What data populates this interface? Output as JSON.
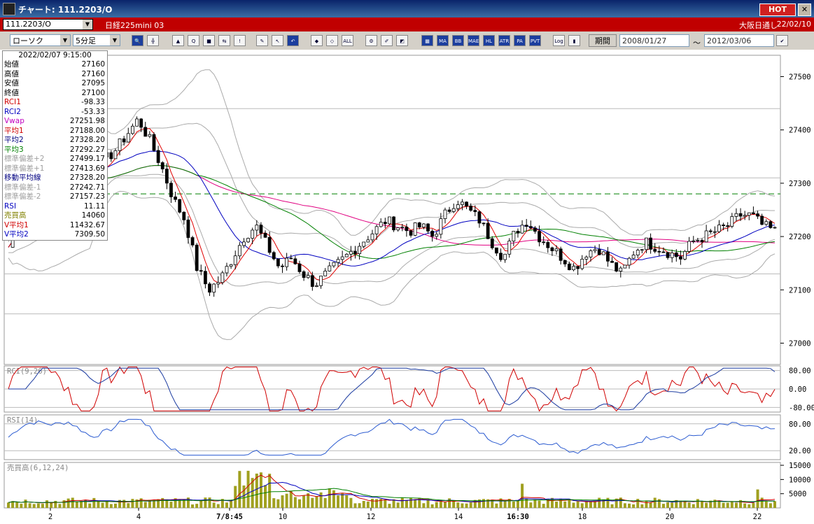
{
  "window": {
    "title": "チャート: 111.2203/O",
    "hot_label": "HOT",
    "close_glyph": "✕"
  },
  "symbol_bar": {
    "symbol": "111.2203/O",
    "name": "日経225mini 03",
    "session": "大阪日通し",
    "date": "22/02/10"
  },
  "toolbar": {
    "chart_type": "ローソク",
    "interval": "5分足",
    "period_label": "期間",
    "date_from": "2008/01/27",
    "tilde": "〜",
    "date_to": "2012/03/06",
    "buttons": [
      {
        "name": "zoom-icon",
        "label": "🔍",
        "style": "blue"
      },
      {
        "name": "crosshair-icon",
        "label": "╬",
        "style": ""
      },
      {
        "name": "tool-icon-a",
        "label": "▲",
        "style": ""
      },
      {
        "name": "tool-icon-b",
        "label": "Q",
        "style": ""
      },
      {
        "name": "tool-icon-c",
        "label": "■",
        "style": ""
      },
      {
        "name": "tool-icon-d",
        "label": "⇆",
        "style": ""
      },
      {
        "name": "tool-icon-e",
        "label": "!",
        "style": ""
      },
      {
        "name": "pen-icon",
        "label": "✎",
        "style": ""
      },
      {
        "name": "cursor-icon",
        "label": "↖",
        "style": ""
      },
      {
        "name": "undo-icon",
        "label": "↶",
        "style": "blue"
      },
      {
        "name": "candle-icon-a",
        "label": "◆",
        "style": ""
      },
      {
        "name": "candle-icon-b",
        "label": "◇",
        "style": ""
      },
      {
        "name": "all-icon",
        "label": "ALL",
        "style": ""
      },
      {
        "name": "settings-icon",
        "label": "⚙",
        "style": ""
      },
      {
        "name": "brush-icon",
        "label": "✐",
        "style": ""
      },
      {
        "name": "color-icon",
        "label": "◩",
        "style": ""
      },
      {
        "name": "grid-icon",
        "label": "▦",
        "style": "blue"
      },
      {
        "name": "ma-icon",
        "label": "MA",
        "style": "blue"
      },
      {
        "name": "bb-icon",
        "label": "BB",
        "style": "blue"
      },
      {
        "name": "mae-icon",
        "label": "MAE",
        "style": "blue"
      },
      {
        "name": "hl-icon",
        "label": "HL",
        "style": "blue"
      },
      {
        "name": "atr-icon",
        "label": "ATR",
        "style": "blue"
      },
      {
        "name": "para-icon",
        "label": "PA",
        "style": "blue"
      },
      {
        "name": "pvt-icon",
        "label": "PVT",
        "style": "blue"
      },
      {
        "name": "log-icon",
        "label": "Log",
        "style": ""
      },
      {
        "name": "split-icon",
        "label": "▮",
        "style": ""
      }
    ]
  },
  "info_panel": {
    "timestamp": "2022/02/07 9:15:00",
    "rows": [
      {
        "label": "始値",
        "value": "27160",
        "color": "#000000"
      },
      {
        "label": "高値",
        "value": "27160",
        "color": "#000000"
      },
      {
        "label": "安値",
        "value": "27095",
        "color": "#000000"
      },
      {
        "label": "終値",
        "value": "27100",
        "color": "#000000"
      },
      {
        "label": "RCI1",
        "value": "-98.33",
        "color": "#d00000"
      },
      {
        "label": "RCI2",
        "value": "-53.33",
        "color": "#0000c0"
      },
      {
        "label": "Vwap",
        "value": "27251.98",
        "color": "#c000c0"
      },
      {
        "label": "平均1",
        "value": "27188.00",
        "color": "#d00000"
      },
      {
        "label": "平均2",
        "value": "27328.20",
        "color": "#000080"
      },
      {
        "label": "平均3",
        "value": "27292.27",
        "color": "#008000"
      },
      {
        "label": "標準偏差+2",
        "value": "27499.17",
        "color": "#a0a0a0"
      },
      {
        "label": "標準偏差+1",
        "value": "27413.69",
        "color": "#a0a0a0"
      },
      {
        "label": "移動平均線",
        "value": "27328.20",
        "color": "#000080"
      },
      {
        "label": "標準偏差-1",
        "value": "27242.71",
        "color": "#a0a0a0"
      },
      {
        "label": "標準偏差-2",
        "value": "27157.23",
        "color": "#a0a0a0"
      },
      {
        "label": "RSI",
        "value": "11.11",
        "color": "#0000c0"
      },
      {
        "label": "売買高",
        "value": "14060",
        "color": "#808000"
      },
      {
        "label": "V平均1",
        "value": "11432.67",
        "color": "#d00000"
      },
      {
        "label": "V平均2",
        "value": "7309.50",
        "color": "#0000c0"
      }
    ]
  },
  "price_axis": [
    "27500",
    "27400",
    "27300",
    "27200",
    "27100",
    "27000"
  ],
  "rci_panel": {
    "label": "RCI(9,26)",
    "ticks": [
      "80.00",
      "0.00",
      "-80.00"
    ]
  },
  "rsi_panel": {
    "label": "RSI(14)",
    "ticks": [
      "80.00",
      "20.00"
    ]
  },
  "volume_panel": {
    "label": "売買高(6,12,24)",
    "ticks": [
      "15000",
      "10000",
      "5000"
    ]
  },
  "x_axis": [
    "2",
    "4",
    "7/8:45",
    "10",
    "12",
    "14",
    "16:30",
    "18",
    "20",
    "22"
  ],
  "colors": {
    "candle_up": "#000000",
    "ma1": "#e00000",
    "ma2": "#0000c0",
    "ma3": "#008000",
    "vwap": "#e00080",
    "band": "#a0a0a0",
    "volume": "#a0a020",
    "dashed": "#008000"
  },
  "chart_data": [
    {
      "type": "candlestick",
      "title": "",
      "ylim": [
        26960,
        27540
      ],
      "x_labels": [
        "2",
        "4",
        "7/8:45",
        "10",
        "12",
        "14",
        "16:30",
        "18",
        "20",
        "22"
      ],
      "series_close": [
        27180,
        27240,
        27300,
        27340,
        27350,
        27360,
        27330,
        27310,
        27340,
        27360,
        27390,
        27420,
        27380,
        27330,
        27270,
        27230,
        27140,
        27100,
        27120,
        27160,
        27200,
        27220,
        27180,
        27140,
        27160,
        27130,
        27110,
        27130,
        27150,
        27170,
        27190,
        27210,
        27230,
        27220,
        27210,
        27220,
        27200,
        27240,
        27270,
        27250,
        27230,
        27190,
        27160,
        27210,
        27230,
        27200,
        27180,
        27160,
        27140,
        27170,
        27180,
        27150,
        27130,
        27170,
        27190,
        27180,
        27170,
        27160,
        27190,
        27200,
        27210,
        27220,
        27240,
        27240,
        27220,
        27210
      ],
      "dashed_level": 27280
    },
    {
      "type": "line",
      "title": "",
      "ylim": [
        -100,
        100
      ],
      "series": [
        {
          "name": "RCI1"
        },
        {
          "name": "RCI2"
        }
      ]
    },
    {
      "type": "line",
      "title": "",
      "ylim": [
        0,
        100
      ],
      "series": [
        {
          "name": "RSI"
        }
      ]
    },
    {
      "type": "bar",
      "title": "",
      "ylim": [
        0,
        16000
      ],
      "series": [
        {
          "name": "売買高"
        }
      ]
    }
  ]
}
